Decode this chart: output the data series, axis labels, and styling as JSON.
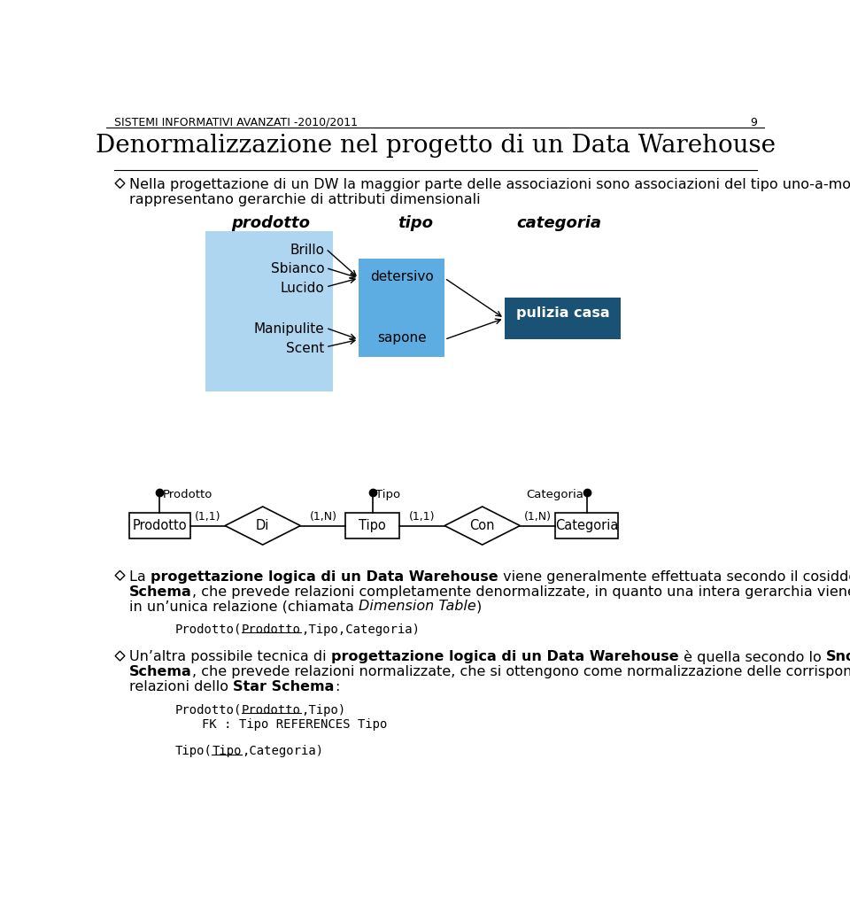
{
  "page_header": "SISTEMI INFORMATIVI AVANZATI -2010/2011",
  "page_number": "9",
  "title": "Denormalizzazione nel progetto di un Data Warehouse",
  "bullet1_line1": "Nella progettazione di un DW la maggior parte delle associazioni sono associazioni del tipo uno-a-molti che",
  "bullet1_line2": "rappresentano gerarchie di attributi dimensionali",
  "prodotto_label": "prodotto",
  "tipo_label": "tipo",
  "categoria_label": "categoria",
  "prodotto_items": [
    "Brillo",
    "Sbianco",
    "Lucido",
    "Manipulite",
    "Scent"
  ],
  "tipo_items": [
    "detersivo",
    "sapone"
  ],
  "categoria_item": "pulizia casa",
  "prodotto_box_color": "#aed6f1",
  "tipo_box_color": "#5dade2",
  "categoria_box_color": "#1a5276",
  "categoria_text_color": "#ffffff",
  "bg_color": "#ffffff",
  "text_color": "#000000"
}
